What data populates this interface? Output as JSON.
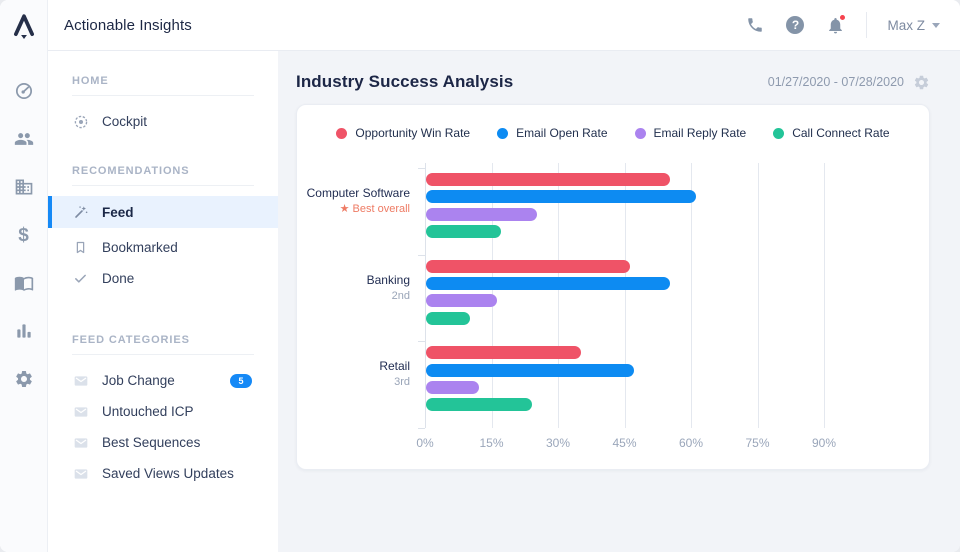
{
  "topbar": {
    "title": "Actionable Insights",
    "user_menu": "Max Z"
  },
  "rail": {
    "icons": [
      "apollo-logo",
      "gauge",
      "users",
      "company",
      "dollar",
      "book",
      "bar-chart",
      "settings"
    ]
  },
  "sidebar": {
    "sections": [
      {
        "header": "HOME",
        "items": [
          {
            "label": "Cockpit",
            "icon": "target-icon"
          }
        ]
      },
      {
        "header": "RECOMENDATIONS",
        "items": [
          {
            "label": "Feed",
            "icon": "wand-icon",
            "active": true
          },
          {
            "label": "Bookmarked",
            "icon": "bookmark-icon"
          },
          {
            "label": "Done",
            "icon": "check-icon"
          }
        ]
      },
      {
        "header": "FEED CATEGORIES",
        "items": [
          {
            "label": "Job Change",
            "icon": "mail-icon",
            "badge": "5"
          },
          {
            "label": "Untouched ICP",
            "icon": "mail-icon"
          },
          {
            "label": "Best Sequences",
            "icon": "mail-icon"
          },
          {
            "label": "Saved Views Updates",
            "icon": "mail-icon"
          }
        ]
      }
    ]
  },
  "main": {
    "title": "Industry Success Analysis",
    "date_range": "01/27/2020 - 07/28/2020"
  },
  "colors": {
    "accent_blue": "#1589f6",
    "notification_red": "#f6434e"
  },
  "chart_data": {
    "type": "bar",
    "orientation": "horizontal",
    "title": "Industry Success Analysis",
    "categories": [
      "Computer Software",
      "Banking",
      "Retail"
    ],
    "category_sublabels": [
      "★ Best overall",
      "2nd",
      "3rd"
    ],
    "series": [
      {
        "name": "Opportunity Win Rate",
        "color": "#ef5367",
        "values": [
          55,
          46,
          35
        ]
      },
      {
        "name": "Email Open Rate",
        "color": "#0d8bf2",
        "values": [
          61,
          55,
          47
        ]
      },
      {
        "name": "Email Reply Rate",
        "color": "#ab83ef",
        "values": [
          25,
          16,
          12
        ]
      },
      {
        "name": "Call Connect Rate",
        "color": "#23c498",
        "values": [
          17,
          10,
          24
        ]
      }
    ],
    "x_ticks": [
      "0%",
      "15%",
      "30%",
      "45%",
      "60%",
      "75%",
      "90%"
    ],
    "xlim": [
      0,
      90
    ],
    "grid": "vertical",
    "legend_position": "top"
  }
}
